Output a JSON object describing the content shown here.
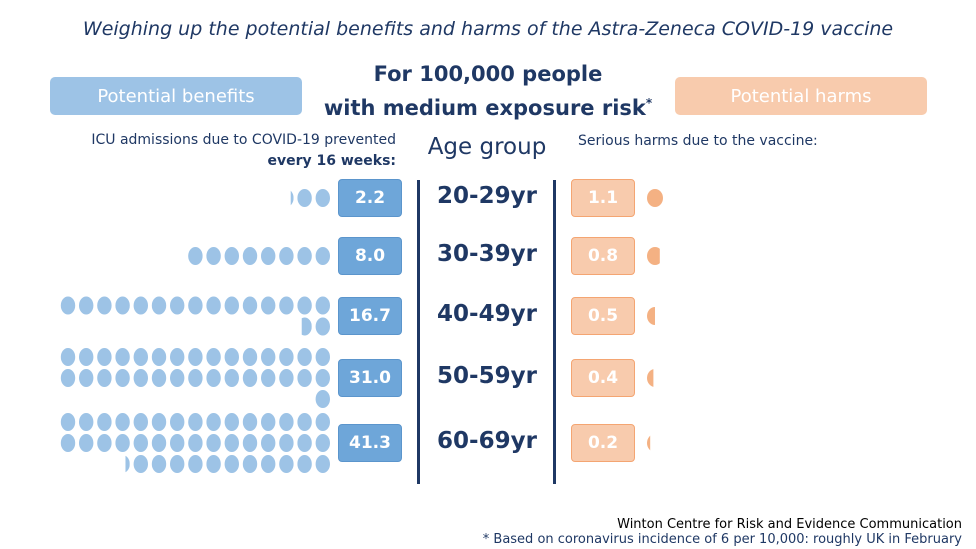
{
  "title": "Weighing up the potential benefits and harms of the Astra-Zeneca COVID-19 vaccine",
  "subtitle_line1": "For 100,000 people",
  "subtitle_line2": "with medium exposure risk",
  "subtitle_mark": "*",
  "benefits_label": "Potential benefits",
  "harms_label": "Potential harms",
  "benefit_caption_line1": "ICU admissions due to COVID-19 prevented",
  "benefit_caption_line2": "every 16 weeks:",
  "age_header": "Age group",
  "harm_caption": "Serious harms due to the vaccine:",
  "footer_source": "Winton Centre for Risk and Evidence Communication",
  "footer_note": "* Based on coronavirus incidence of 6 per 10,000: roughly UK in February",
  "colors": {
    "benefit_dot": "#9dc3e6",
    "benefit_box": "#6ea6d9",
    "harm_dot": "#f4b183",
    "harm_box": "#f8cbad",
    "text_dark": "#1f3864"
  },
  "chart_data": {
    "type": "pictograph",
    "categories": [
      "20-29yr",
      "30-39yr",
      "40-49yr",
      "50-59yr",
      "60-69yr"
    ],
    "series": [
      {
        "name": "Potential benefits",
        "values": [
          2.2,
          8.0,
          16.7,
          31.0,
          41.3
        ],
        "labels": [
          "2.2",
          "8.0",
          "16.7",
          "31.0",
          "41.3"
        ]
      },
      {
        "name": "Potential harms",
        "values": [
          1.1,
          0.8,
          0.5,
          0.4,
          0.2
        ],
        "labels": [
          "1.1",
          "0.8",
          "0.5",
          "0.4",
          "0.2"
        ]
      }
    ]
  }
}
